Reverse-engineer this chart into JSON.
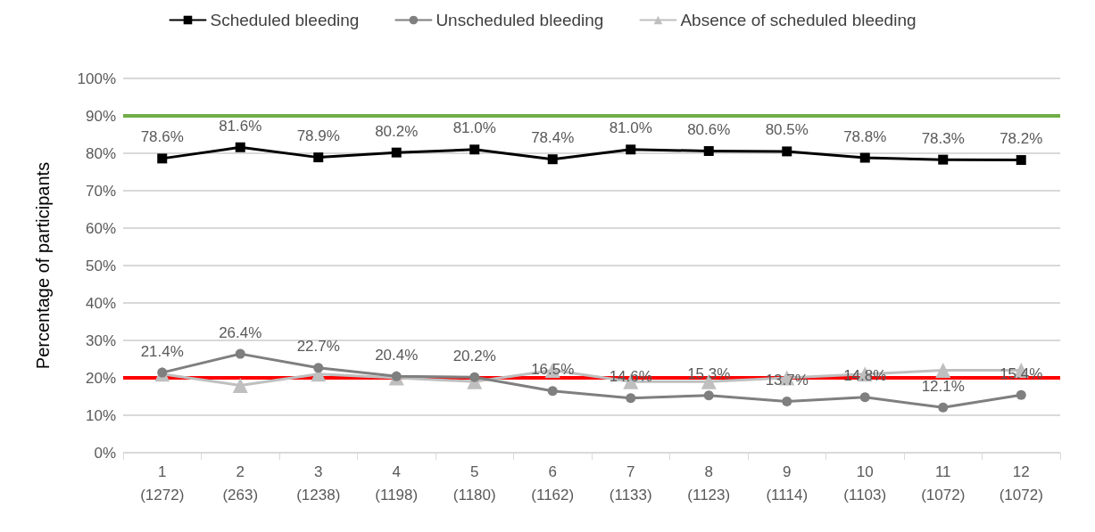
{
  "chart_data": {
    "type": "line",
    "ylabel": "Percentage of participants",
    "categories": [
      "1\n(1272)",
      "2\n(263)",
      "3\n(1238)",
      "4\n(1198)",
      "5\n(1180)",
      "6\n(1162)",
      "7\n(1133)",
      "8\n(1123)",
      "9\n(1114)",
      "10\n(1103)",
      "11\n(1072)",
      "12\n(1072)"
    ],
    "series": [
      {
        "name": "Scheduled bleeding",
        "color": "#000000",
        "marker": "square",
        "values": [
          78.6,
          81.6,
          78.9,
          80.2,
          81.0,
          78.4,
          81.0,
          80.6,
          80.5,
          78.8,
          78.3,
          78.2
        ],
        "value_labels": [
          "78.6%",
          "81.6%",
          "78.9%",
          "80.2%",
          "81.0%",
          "78.4%",
          "81.0%",
          "80.6%",
          "80.5%",
          "78.8%",
          "78.3%",
          "78.2%"
        ]
      },
      {
        "name": "Unscheduled bleeding",
        "color": "#7f7f7f",
        "marker": "circle",
        "values": [
          21.4,
          26.4,
          22.7,
          20.4,
          20.2,
          16.5,
          14.6,
          15.3,
          13.7,
          14.8,
          12.1,
          15.4
        ],
        "value_labels": [
          "21.4%",
          "26.4%",
          "22.7%",
          "20.4%",
          "20.2%",
          "16.5%",
          "14.6%",
          "15.3%",
          "13.7%",
          "14.8%",
          "12.1%",
          "15.4%"
        ]
      },
      {
        "name": "Absence of scheduled bleeding",
        "color": "#bfbfbf",
        "marker": "triangle",
        "values": [
          21,
          18,
          21,
          20,
          19,
          22,
          19,
          19,
          20,
          21,
          22,
          22
        ]
      }
    ],
    "ylim": [
      0,
      100
    ],
    "yticks": [
      {
        "value": 0,
        "label": "0%"
      },
      {
        "value": 10,
        "label": "10%"
      },
      {
        "value": 20,
        "label": "20%"
      },
      {
        "value": 30,
        "label": "30%"
      },
      {
        "value": 40,
        "label": "40%"
      },
      {
        "value": 50,
        "label": "50%"
      },
      {
        "value": 60,
        "label": "60%"
      },
      {
        "value": 70,
        "label": "70%"
      },
      {
        "value": 80,
        "label": "80%"
      },
      {
        "value": 90,
        "label": "90%"
      },
      {
        "value": 100,
        "label": "100%"
      }
    ],
    "grid": "y",
    "legend": "top",
    "ref_lines": [
      {
        "axis": "y",
        "value": 90,
        "color": "#70ad47"
      },
      {
        "axis": "y",
        "value": 20,
        "color": "#ff0000"
      }
    ]
  }
}
